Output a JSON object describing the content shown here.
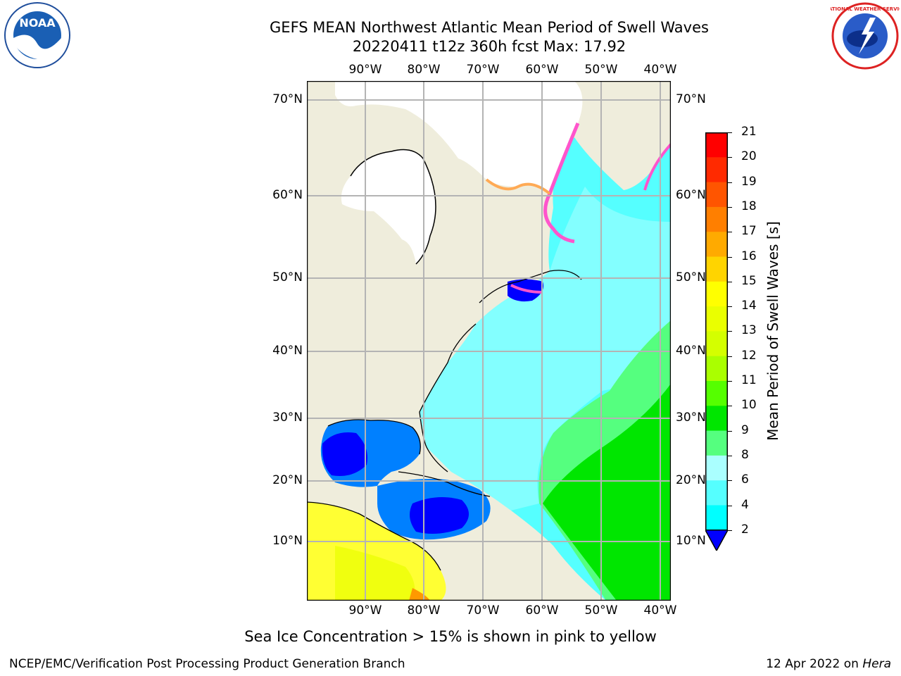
{
  "title": {
    "line1": "GEFS MEAN Northwest Atlantic Mean Period of Swell Waves",
    "line2": "20220411 t12z 360h fcst   Max: 17.92"
  },
  "logos": {
    "left": {
      "name": "noaa-logo",
      "text": "NOAA"
    },
    "right": {
      "name": "nws-logo",
      "text": "NATIONAL WEATHER SERVICE"
    }
  },
  "map": {
    "lon_labels": [
      "90°W",
      "80°W",
      "70°W",
      "60°W",
      "50°W",
      "40°W"
    ],
    "lat_labels": [
      "70°N",
      "60°N",
      "50°N",
      "40°N",
      "30°N",
      "20°N",
      "10°N"
    ],
    "land_color": "#efeddc",
    "ice_free_color": "#ffffff"
  },
  "colorbar": {
    "title": "Mean Period of Swell Waves [s]",
    "ticks": [
      "21",
      "20",
      "19",
      "18",
      "17",
      "16",
      "15",
      "14",
      "13",
      "12",
      "11",
      "10",
      "9",
      "8",
      "6",
      "4",
      "2"
    ],
    "colors": [
      "#ff0000",
      "#ff2a00",
      "#ff5500",
      "#ff7f00",
      "#ffaa00",
      "#ffd400",
      "#ffff00",
      "#eaff00",
      "#d4ff00",
      "#aaff00",
      "#55ff00",
      "#00e600",
      "#55ff7f",
      "#aaffff",
      "#55ffff",
      "#00ffff",
      "#0080ff",
      "#0000ff"
    ]
  },
  "note": "Sea Ice Concentration > 15% is shown in pink to yellow",
  "footer": {
    "credit": "NCEP/EMC/Verification Post Processing Product Generation Branch",
    "date_prefix": "12 Apr 2022 on ",
    "date_system": "Hera"
  }
}
